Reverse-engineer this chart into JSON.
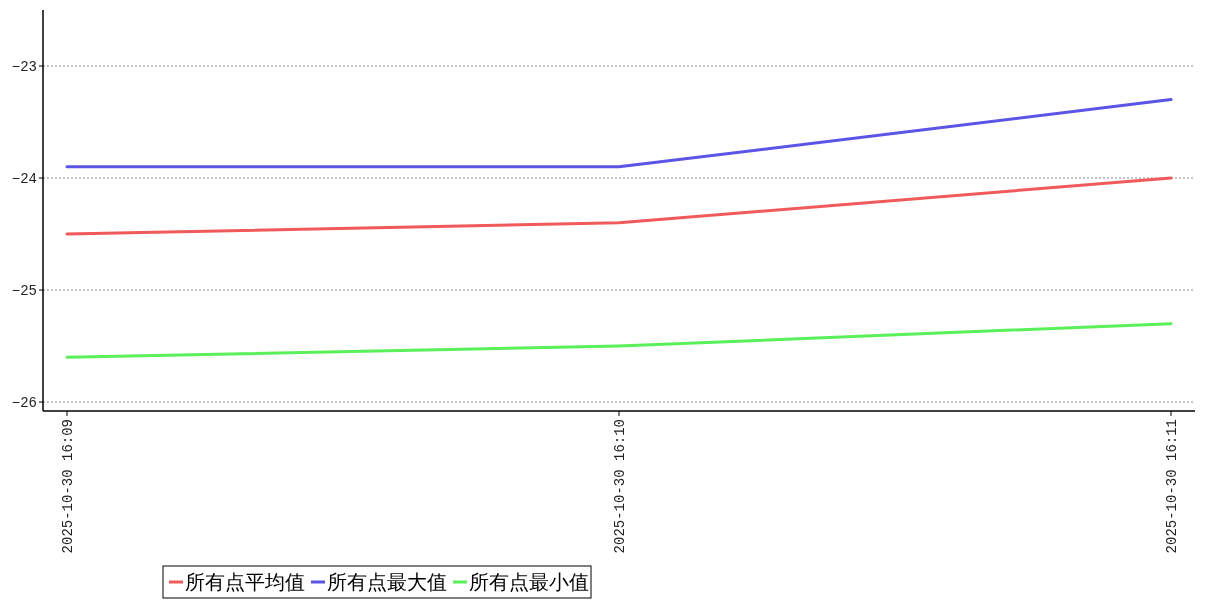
{
  "chart_data": {
    "type": "line",
    "categories": [
      "2025-10-30 16:09",
      "2025-10-30 16:10",
      "2025-10-30 16:11"
    ],
    "series": [
      {
        "name": "所有点平均值",
        "color": "#f05a5a",
        "values": [
          -24.5,
          -24.4,
          -24.0
        ]
      },
      {
        "name": "所有点最大值",
        "color": "#5a55e6",
        "values": [
          -23.9,
          -23.9,
          -23.3
        ]
      },
      {
        "name": "所有点最小值",
        "color": "#5af05a",
        "values": [
          -25.6,
          -25.5,
          -25.3
        ]
      }
    ],
    "ylim": [
      -26.08,
      -22.5
    ],
    "yticks": [
      -26,
      -25,
      -24,
      -23
    ],
    "grid": "y",
    "legend": "bottom",
    "line_style": "solid",
    "marker": "none"
  }
}
